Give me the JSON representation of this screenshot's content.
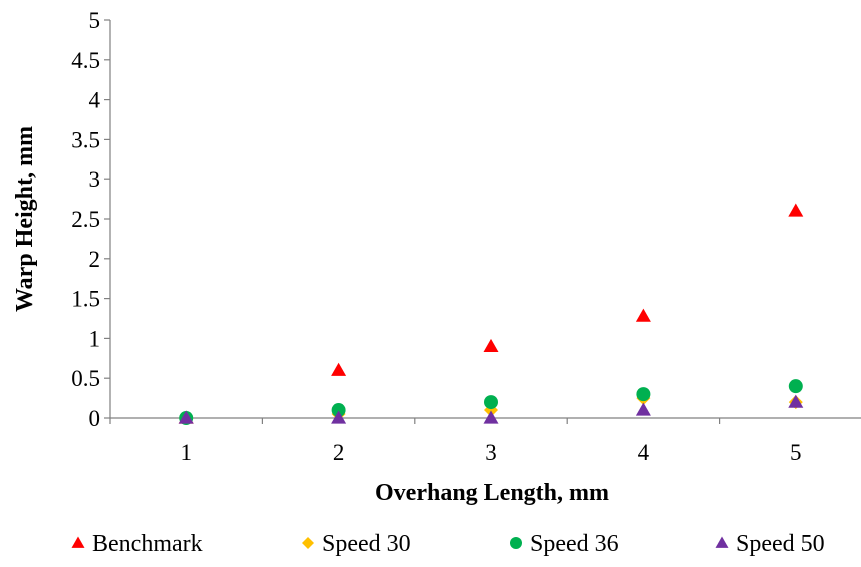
{
  "chart_data": {
    "type": "scatter",
    "title": "",
    "xlabel": "Overhang Length, mm",
    "ylabel": "Warp Height, mm",
    "xlim": [
      0.5,
      5.5
    ],
    "ylim": [
      0,
      5
    ],
    "x_ticks": [
      "1",
      "2",
      "3",
      "4",
      "5"
    ],
    "y_ticks": [
      "0",
      "0.5",
      "1",
      "1.5",
      "2",
      "2.5",
      "3",
      "3.5",
      "4",
      "4.5",
      "5"
    ],
    "grid": false,
    "legend_position": "bottom",
    "series": [
      {
        "name": "Benchmark",
        "marker": "triangle",
        "color": "#ff0000",
        "x": [
          1,
          2,
          3,
          4,
          5
        ],
        "y": [
          0,
          0.6,
          0.9,
          1.28,
          2.6
        ]
      },
      {
        "name": "Speed 30",
        "marker": "diamond",
        "color": "#ffc000",
        "x": [
          1,
          2,
          3,
          4,
          5
        ],
        "y": [
          0,
          0.05,
          0.1,
          0.25,
          0.2
        ]
      },
      {
        "name": "Speed 36",
        "marker": "circle",
        "color": "#00b050",
        "x": [
          1,
          2,
          3,
          4,
          5
        ],
        "y": [
          0,
          0.1,
          0.2,
          0.3,
          0.4
        ]
      },
      {
        "name": "Speed 50",
        "marker": "triangle",
        "color": "#7030a0",
        "x": [
          1,
          2,
          3,
          4,
          5
        ],
        "y": [
          0,
          0,
          0,
          0.1,
          0.2
        ]
      }
    ]
  }
}
